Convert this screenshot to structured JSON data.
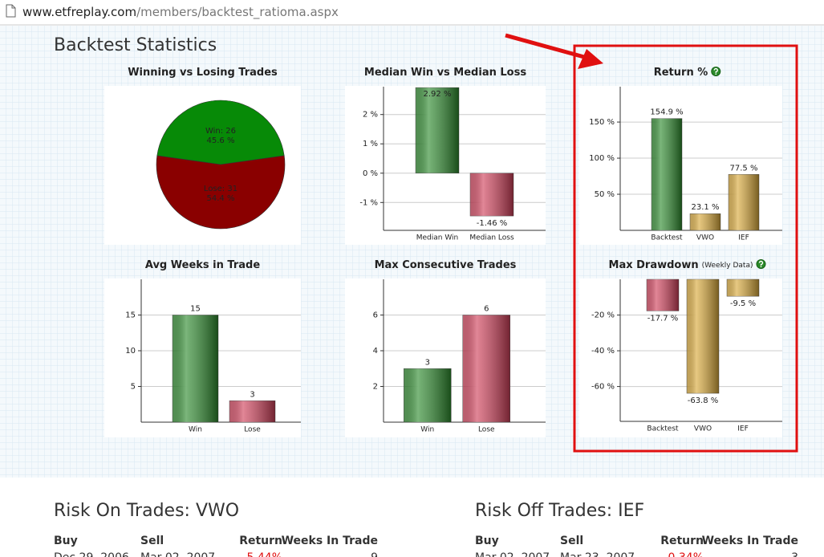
{
  "browser": {
    "url_host": "www.etfreplay.com",
    "url_path": "/members/backtest_ratioma.aspx"
  },
  "heading": "Backtest Statistics",
  "chart_data": [
    {
      "type": "pie",
      "title": "Winning vs Losing Trades",
      "labels": [
        "Win: 26",
        "Lose: 31"
      ],
      "values": [
        45.6,
        54.4
      ],
      "value_labels": [
        "45.6 %",
        "54.4 %"
      ],
      "colors": [
        "#078a07",
        "#8a0000"
      ]
    },
    {
      "type": "bar",
      "title": "Median Win vs Median Loss",
      "categories": [
        "Median Win",
        "Median Loss"
      ],
      "values": [
        2.92,
        -1.46
      ],
      "value_labels": [
        "2.92 %",
        "-1.46 %"
      ],
      "colors": [
        "#2e8b2e",
        "#d0405a"
      ],
      "ylim": [
        -1.95,
        2.95
      ],
      "yticks": [
        {
          "value": 2,
          "label": "2 %"
        },
        {
          "value": 1,
          "label": "1 %"
        },
        {
          "value": 0,
          "label": "0 %"
        },
        {
          "value": -1,
          "label": "-1 %"
        }
      ],
      "grid": true
    },
    {
      "type": "bar",
      "title": "Return %",
      "help": true,
      "categories": [
        "Backtest",
        "VWO",
        "IEF"
      ],
      "values": [
        154.9,
        23.1,
        77.5
      ],
      "value_labels": [
        "154.9 %",
        "23.1 %",
        "77.5 %"
      ],
      "colors": [
        "#2e8b2e",
        "#d9a93a",
        "#d9a93a"
      ],
      "ylim": [
        0,
        199
      ],
      "yticks": [
        {
          "value": 150,
          "label": "150 %"
        },
        {
          "value": 100,
          "label": "100 %"
        },
        {
          "value": 50,
          "label": "50 %"
        }
      ],
      "grid": true
    },
    {
      "type": "bar",
      "title": "Avg Weeks in Trade",
      "categories": [
        "Win",
        "Lose"
      ],
      "values": [
        15,
        3
      ],
      "colors": [
        "#2e8b2e",
        "#d0405a"
      ],
      "ylim": [
        0,
        20
      ],
      "yticks": [
        15,
        10,
        5
      ],
      "grid": true
    },
    {
      "type": "bar",
      "title": "Max Consecutive Trades",
      "categories": [
        "Win",
        "Lose"
      ],
      "values": [
        3,
        6
      ],
      "colors": [
        "#2e8b2e",
        "#d0405a"
      ],
      "ylim": [
        0,
        8
      ],
      "yticks": [
        6,
        4,
        2
      ],
      "grid": true
    },
    {
      "type": "bar",
      "title": "Max Drawdown",
      "subtitle": "(Weekly Data)",
      "help": true,
      "categories": [
        "Backtest",
        "VWO",
        "IEF"
      ],
      "values": [
        -17.7,
        -63.8,
        -9.5
      ],
      "value_labels": [
        "-17.7 %",
        "-63.8 %",
        "-9.5 %"
      ],
      "colors": [
        "#d0405a",
        "#d9a93a",
        "#d9a93a"
      ],
      "ylim": [
        -79.5,
        0
      ],
      "yticks": [
        {
          "value": -20,
          "label": "-20 %"
        },
        {
          "value": -40,
          "label": "-40 %"
        },
        {
          "value": -60,
          "label": "-60 %"
        }
      ],
      "grid": true
    }
  ],
  "tables": [
    {
      "title": "Risk On Trades: VWO",
      "columns": [
        "Buy",
        "Sell",
        "Return",
        "Weeks In Trade"
      ],
      "rows": [
        [
          "Dec 29, 2006",
          "Mar 02, 2007",
          "5.44%",
          "9"
        ]
      ]
    },
    {
      "title": "Risk Off Trades: IEF",
      "columns": [
        "Buy",
        "Sell",
        "Return",
        "Weeks In Trade"
      ],
      "rows": [
        [
          "Mar 02, 2007",
          "Mar 23, 2007",
          "0.34%",
          "3"
        ]
      ]
    }
  ]
}
